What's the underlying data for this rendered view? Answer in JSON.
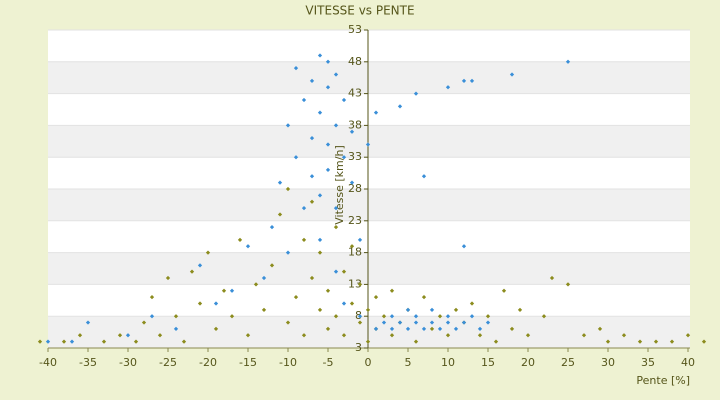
{
  "chart_data": {
    "type": "scatter",
    "title": "VITESSE vs PENTE",
    "xlabel": "Pente [%]",
    "ylabel": "Vitesse [km/h]",
    "xlim": [
      -40,
      40
    ],
    "ylim": [
      3,
      53
    ],
    "xticks": [
      -40,
      -35,
      -30,
      -25,
      -20,
      -15,
      -10,
      -5,
      0,
      5,
      10,
      15,
      20,
      25,
      30,
      35,
      40
    ],
    "yticks": [
      3,
      8,
      13,
      18,
      23,
      28,
      33,
      38,
      43,
      48,
      53
    ],
    "grid": true,
    "series": [
      {
        "color": "#8c8c1e",
        "x": [
          -41,
          -38,
          -36,
          -33,
          -31,
          -29,
          -28,
          -27,
          -26,
          -25,
          -24,
          -23,
          -22,
          -21,
          -20,
          -19,
          -18,
          -17,
          -16,
          -15,
          -14,
          -13,
          -12,
          -11,
          -10,
          -10,
          -9,
          -8,
          -8,
          -7,
          -7,
          -6,
          -6,
          -5,
          -5,
          -4,
          -4,
          -3,
          -3,
          -2,
          -2,
          -1,
          -1,
          0,
          0,
          1,
          1,
          2,
          3,
          3,
          4,
          5,
          6,
          7,
          8,
          9,
          10,
          11,
          12,
          13,
          14,
          15,
          16,
          17,
          18,
          19,
          20,
          22,
          23,
          25,
          27,
          29,
          30,
          32,
          34,
          36,
          38,
          40,
          42
        ],
        "values": [
          4,
          4,
          5,
          4,
          5,
          4,
          7,
          11,
          5,
          14,
          8,
          4,
          15,
          10,
          18,
          6,
          12,
          8,
          20,
          5,
          13,
          9,
          16,
          24,
          7,
          28,
          11,
          20,
          5,
          26,
          14,
          9,
          18,
          6,
          12,
          22,
          8,
          15,
          5,
          10,
          19,
          7,
          13,
          4,
          9,
          6,
          11,
          8,
          5,
          12,
          7,
          9,
          4,
          11,
          6,
          8,
          5,
          9,
          7,
          10,
          5,
          8,
          4,
          12,
          6,
          9,
          5,
          8,
          14,
          13,
          5,
          6,
          4,
          5,
          4,
          4,
          4,
          5,
          4
        ]
      },
      {
        "color": "#3a8fd8",
        "x": [
          -40,
          -37,
          -35,
          -30,
          -27,
          -24,
          -21,
          -19,
          -17,
          -15,
          -13,
          -12,
          -11,
          -10,
          -10,
          -9,
          -9,
          -8,
          -8,
          -7,
          -7,
          -7,
          -6,
          -6,
          -6,
          -6,
          -5,
          -5,
          -5,
          -5,
          -4,
          -4,
          -4,
          -4,
          -3,
          -3,
          -3,
          -2,
          -2,
          -1,
          -1,
          0,
          1,
          1,
          2,
          3,
          3,
          4,
          5,
          5,
          6,
          6,
          7,
          7,
          8,
          8,
          9,
          10,
          10,
          11,
          12,
          12,
          13,
          14,
          15,
          4,
          6,
          10,
          12,
          13,
          18,
          25
        ],
        "values": [
          4,
          4,
          7,
          5,
          8,
          6,
          16,
          10,
          12,
          19,
          14,
          22,
          29,
          18,
          38,
          33,
          47,
          25,
          42,
          36,
          45,
          30,
          40,
          49,
          27,
          20,
          44,
          35,
          48,
          31,
          38,
          46,
          25,
          15,
          42,
          33,
          10,
          29,
          37,
          20,
          8,
          35,
          40,
          6,
          7,
          8,
          6,
          7,
          9,
          6,
          7,
          8,
          6,
          30,
          7,
          9,
          6,
          7,
          8,
          6,
          7,
          19,
          8,
          6,
          7,
          41,
          43,
          44,
          45,
          45,
          46,
          48
        ]
      }
    ]
  }
}
